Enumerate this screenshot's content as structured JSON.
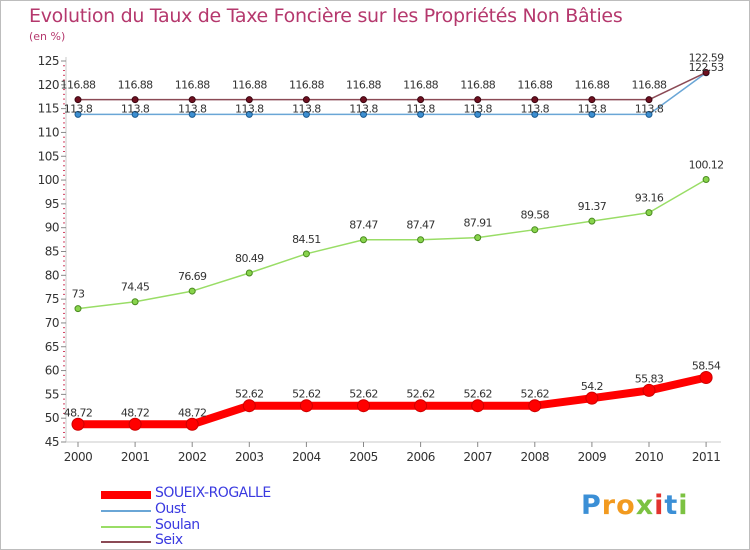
{
  "chart_data": {
    "type": "line",
    "title": "Evolution du Taux de Taxe Foncière sur les Propriétés Non Bâties",
    "ylabel": "(en %)",
    "xlabel": "",
    "ylim": [
      45,
      125
    ],
    "yticks": [
      45,
      50,
      55,
      60,
      65,
      70,
      75,
      80,
      85,
      90,
      95,
      100,
      105,
      110,
      115,
      120,
      125
    ],
    "categories": [
      "2000",
      "2001",
      "2002",
      "2003",
      "2004",
      "2005",
      "2006",
      "2007",
      "2008",
      "2009",
      "2010",
      "2011"
    ],
    "grid": false,
    "legend_position": "bottom-left",
    "series": [
      {
        "name": "SOUEIX-ROGALLE",
        "color": "#ff0000",
        "values": [
          48.72,
          48.72,
          48.72,
          52.62,
          52.62,
          52.62,
          52.62,
          52.62,
          52.62,
          54.2,
          55.83,
          58.54
        ],
        "labels": [
          "48.72",
          "48.72",
          "48.72",
          "52.62",
          "52.62",
          "52.62",
          "52.62",
          "52.62",
          "52.62",
          "54.2",
          "55.83",
          "58.54"
        ]
      },
      {
        "name": "Oust",
        "color": "#6aa6d6",
        "values": [
          113.8,
          113.8,
          113.8,
          113.8,
          113.8,
          113.8,
          113.8,
          113.8,
          113.8,
          113.8,
          113.8,
          122.53
        ],
        "labels": [
          "113.8",
          "113.8",
          "113.8",
          "113.8",
          "113.8",
          "113.8",
          "113.8",
          "113.8",
          "113.8",
          "113.8",
          "113.8",
          "122.53"
        ]
      },
      {
        "name": "Soulan",
        "color": "#99dd66",
        "values": [
          73,
          74.45,
          76.69,
          80.49,
          84.51,
          87.47,
          87.47,
          87.91,
          89.58,
          91.37,
          93.16,
          100.12
        ],
        "labels": [
          "73",
          "74.45",
          "76.69",
          "80.49",
          "84.51",
          "87.47",
          "87.47",
          "87.91",
          "89.58",
          "91.37",
          "93.16",
          "100.12"
        ]
      },
      {
        "name": "Seix",
        "color": "#8b4a55",
        "values": [
          116.88,
          116.88,
          116.88,
          116.88,
          116.88,
          116.88,
          116.88,
          116.88,
          116.88,
          116.88,
          116.88,
          122.59
        ],
        "labels": [
          "116.88",
          "116.88",
          "116.88",
          "116.88",
          "116.88",
          "116.88",
          "116.88",
          "116.88",
          "116.88",
          "116.88",
          "116.88",
          "122.59"
        ]
      }
    ]
  },
  "logo": {
    "letters": [
      "P",
      "r",
      "o",
      "x",
      "i",
      "t",
      "i"
    ],
    "colors": [
      "#3b8fd6",
      "#f29a1f",
      "#f29a1f",
      "#7cc242",
      "#e2332f",
      "#3b8fd6",
      "#7cc242"
    ]
  }
}
